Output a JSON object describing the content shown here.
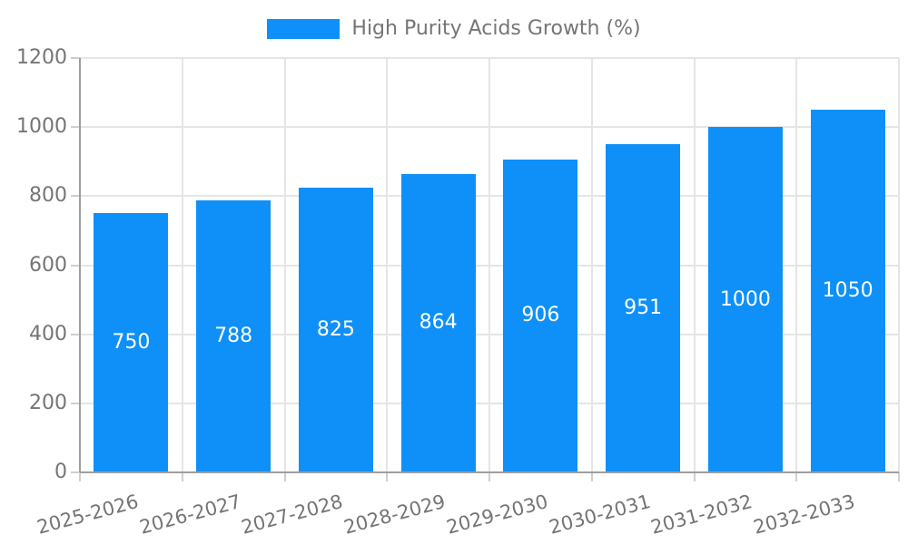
{
  "chart_data": {
    "type": "bar",
    "title": "High Purity Acids Growth (%)",
    "categories": [
      "2025-2026",
      "2026-2027",
      "2027-2028",
      "2028-2029",
      "2029-2030",
      "2030-2031",
      "2031-2032",
      "2032-2033"
    ],
    "values": [
      750,
      788,
      825,
      864,
      906,
      951,
      1000,
      1050
    ],
    "xlabel": "",
    "ylabel": "",
    "ylim": [
      0,
      1200
    ],
    "ytick_step": 200,
    "ytick_labels": [
      "0",
      "200",
      "400",
      "600",
      "800",
      "1000",
      "1200"
    ],
    "grid": true,
    "legend_position": "top",
    "bar_color": "#0e90f8",
    "grid_color": "#e5e5e5",
    "axis_color": "#9e9e9e",
    "tick_mark_color": "#cfcfcf",
    "tick_text_color": "#757575",
    "value_label_color": "#ffffff",
    "background_color": "#ffffff"
  }
}
